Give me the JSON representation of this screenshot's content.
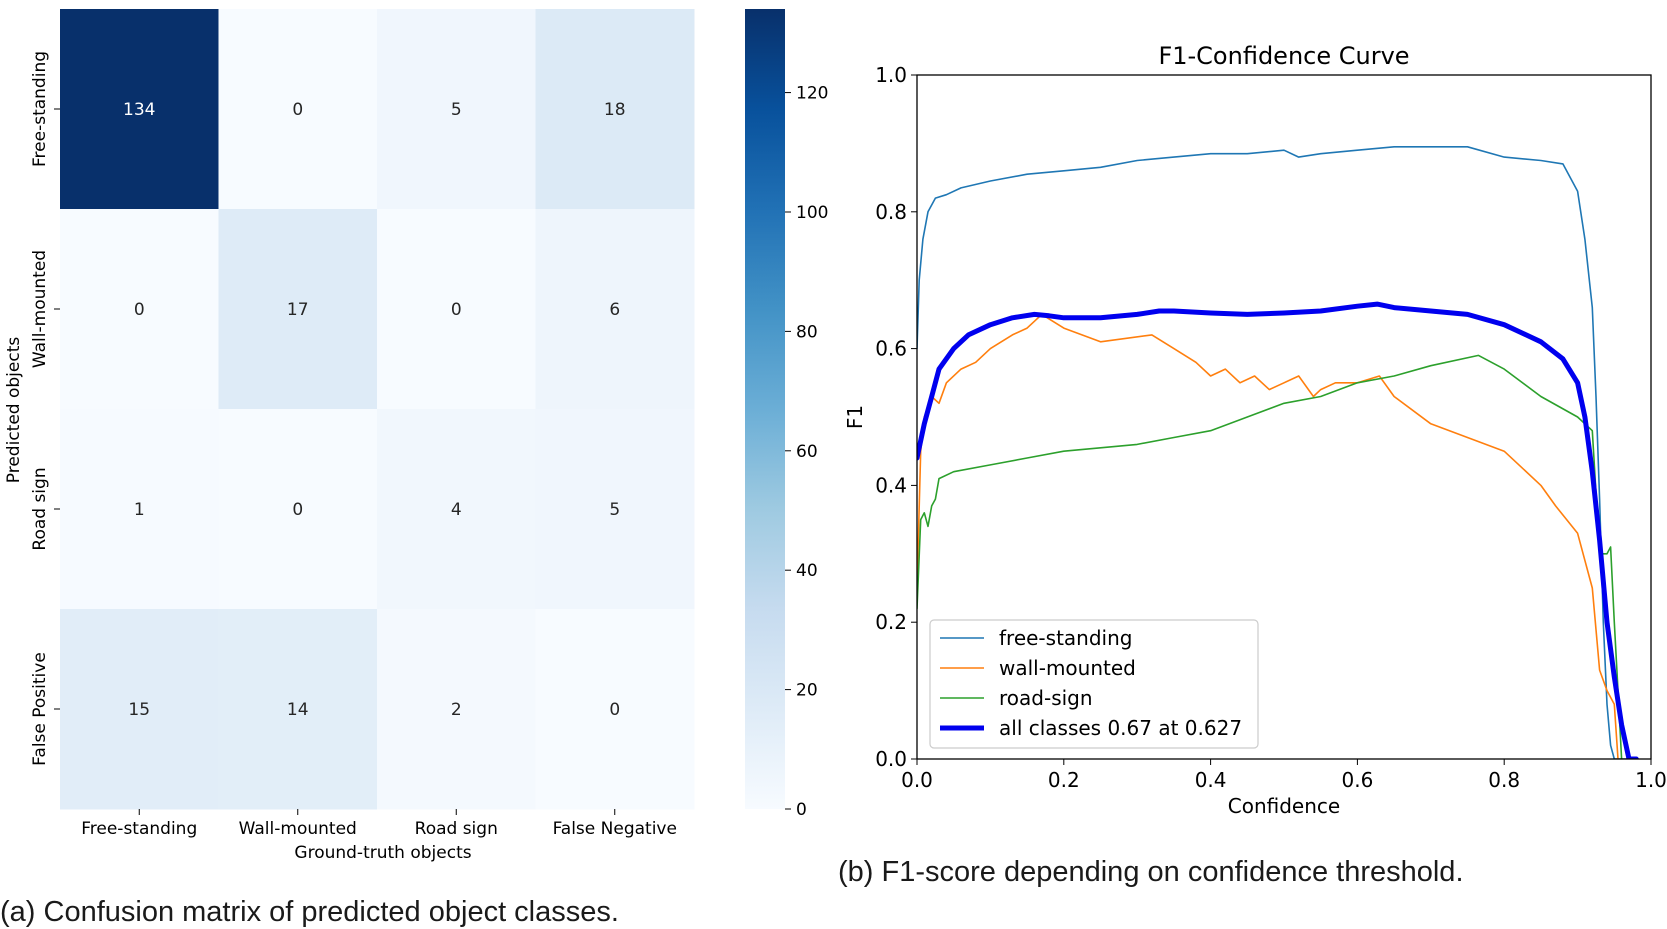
{
  "captions": {
    "a": "(a) Confusion matrix of predicted object classes.",
    "b": "(b) F1-score depending on confidence threshold."
  },
  "chart_data": [
    {
      "type": "heatmap",
      "xlabel": "Ground-truth objects",
      "ylabel": "Predicted objects",
      "x_categories": [
        "Free-standing",
        "Wall-mounted",
        "Road sign",
        "False Negative"
      ],
      "y_categories": [
        "Free-standing",
        "Wall-mounted",
        "Road sign",
        "False Positive"
      ],
      "values": [
        [
          134,
          0,
          5,
          18
        ],
        [
          0,
          17,
          0,
          6
        ],
        [
          1,
          0,
          4,
          5
        ],
        [
          15,
          14,
          2,
          0
        ]
      ],
      "colorbar": {
        "min": 0,
        "max": 134,
        "ticks": [
          0,
          20,
          40,
          60,
          80,
          100,
          120
        ],
        "colormap": "Blues"
      }
    },
    {
      "type": "line",
      "title": "F1-Confidence Curve",
      "xlabel": "Confidence",
      "ylabel": "F1",
      "xlim": [
        0,
        1
      ],
      "ylim": [
        0,
        1
      ],
      "xticks": [
        "0.0",
        "0.2",
        "0.4",
        "0.6",
        "0.8",
        "1.0"
      ],
      "yticks": [
        "0.0",
        "0.2",
        "0.4",
        "0.6",
        "0.8",
        "1.0"
      ],
      "legend_position": "lower-left",
      "series": [
        {
          "name": "free-standing",
          "color": "#1f77b4",
          "width": 1.6,
          "x": [
            0,
            0.003,
            0.008,
            0.015,
            0.025,
            0.04,
            0.06,
            0.1,
            0.15,
            0.2,
            0.25,
            0.3,
            0.35,
            0.4,
            0.45,
            0.5,
            0.52,
            0.55,
            0.6,
            0.65,
            0.7,
            0.75,
            0.8,
            0.85,
            0.88,
            0.9,
            0.91,
            0.92,
            0.925,
            0.93,
            0.935,
            0.94,
            0.945,
            0.95,
            0.96,
            0.97
          ],
          "y": [
            0.6,
            0.7,
            0.76,
            0.8,
            0.82,
            0.825,
            0.835,
            0.845,
            0.855,
            0.86,
            0.865,
            0.875,
            0.88,
            0.885,
            0.885,
            0.89,
            0.88,
            0.885,
            0.89,
            0.895,
            0.895,
            0.895,
            0.88,
            0.875,
            0.87,
            0.83,
            0.76,
            0.66,
            0.53,
            0.38,
            0.2,
            0.08,
            0.02,
            0.0,
            0.0,
            0.0
          ]
        },
        {
          "name": "wall-mounted",
          "color": "#ff7f0e",
          "width": 1.6,
          "x": [
            0,
            0.005,
            0.01,
            0.02,
            0.03,
            0.04,
            0.06,
            0.08,
            0.1,
            0.13,
            0.15,
            0.17,
            0.2,
            0.25,
            0.32,
            0.35,
            0.38,
            0.4,
            0.42,
            0.44,
            0.46,
            0.48,
            0.5,
            0.52,
            0.54,
            0.55,
            0.57,
            0.6,
            0.63,
            0.65,
            0.7,
            0.75,
            0.8,
            0.85,
            0.87,
            0.9,
            0.92,
            0.93,
            0.94,
            0.95,
            0.955
          ],
          "y": [
            0.25,
            0.45,
            0.5,
            0.53,
            0.52,
            0.55,
            0.57,
            0.58,
            0.6,
            0.62,
            0.63,
            0.65,
            0.63,
            0.61,
            0.62,
            0.6,
            0.58,
            0.56,
            0.57,
            0.55,
            0.56,
            0.54,
            0.55,
            0.56,
            0.53,
            0.54,
            0.55,
            0.55,
            0.56,
            0.53,
            0.49,
            0.47,
            0.45,
            0.4,
            0.37,
            0.33,
            0.25,
            0.13,
            0.1,
            0.08,
            0.0
          ]
        },
        {
          "name": "road-sign",
          "color": "#2ca02c",
          "width": 1.6,
          "x": [
            0,
            0.005,
            0.01,
            0.015,
            0.02,
            0.025,
            0.03,
            0.05,
            0.1,
            0.15,
            0.2,
            0.25,
            0.3,
            0.35,
            0.4,
            0.45,
            0.5,
            0.55,
            0.6,
            0.65,
            0.7,
            0.765,
            0.8,
            0.85,
            0.9,
            0.92,
            0.93,
            0.94,
            0.945,
            0.95,
            0.955,
            0.96
          ],
          "y": [
            0.22,
            0.35,
            0.36,
            0.34,
            0.37,
            0.38,
            0.41,
            0.42,
            0.43,
            0.44,
            0.45,
            0.455,
            0.46,
            0.47,
            0.48,
            0.5,
            0.52,
            0.53,
            0.55,
            0.56,
            0.575,
            0.59,
            0.57,
            0.53,
            0.5,
            0.48,
            0.3,
            0.3,
            0.31,
            0.2,
            0.1,
            0.0
          ]
        },
        {
          "name": "all classes 0.67 at 0.627",
          "color": "#0000ee",
          "width": 5,
          "x": [
            0,
            0.01,
            0.02,
            0.03,
            0.05,
            0.07,
            0.1,
            0.13,
            0.16,
            0.18,
            0.2,
            0.25,
            0.3,
            0.33,
            0.35,
            0.4,
            0.45,
            0.5,
            0.55,
            0.6,
            0.627,
            0.65,
            0.7,
            0.75,
            0.8,
            0.85,
            0.88,
            0.9,
            0.91,
            0.92,
            0.93,
            0.94,
            0.95,
            0.96,
            0.97,
            0.98
          ],
          "y": [
            0.44,
            0.49,
            0.53,
            0.57,
            0.6,
            0.62,
            0.635,
            0.645,
            0.65,
            0.648,
            0.645,
            0.645,
            0.65,
            0.655,
            0.655,
            0.652,
            0.65,
            0.652,
            0.655,
            0.662,
            0.665,
            0.66,
            0.655,
            0.65,
            0.635,
            0.61,
            0.585,
            0.55,
            0.5,
            0.42,
            0.32,
            0.2,
            0.12,
            0.05,
            0.0,
            0.0
          ]
        }
      ]
    }
  ]
}
